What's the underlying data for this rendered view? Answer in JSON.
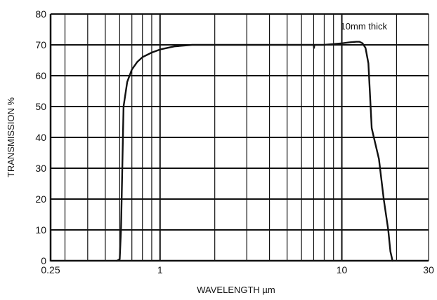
{
  "chart_data": {
    "type": "line",
    "title": "",
    "xlabel": "WAVELENGTH µm",
    "ylabel": "TRANSMISSION %",
    "x_scale": "log",
    "xlim": [
      0.25,
      30
    ],
    "ylim": [
      0,
      80
    ],
    "x_tick_labels": [
      {
        "value": 0.25,
        "label": "0.25"
      },
      {
        "value": 1,
        "label": "1"
      },
      {
        "value": 10,
        "label": "10"
      },
      {
        "value": 30,
        "label": "30"
      }
    ],
    "y_ticks": [
      0,
      10,
      20,
      30,
      40,
      50,
      60,
      70,
      80
    ],
    "x_gridlines": [
      0.3,
      0.4,
      0.5,
      0.6,
      0.7,
      0.8,
      0.9,
      1,
      2,
      3,
      4,
      5,
      6,
      7,
      8,
      9,
      10,
      20,
      30
    ],
    "y_gridlines": [
      10,
      20,
      30,
      40,
      50,
      60,
      70,
      80
    ],
    "grid": true,
    "annotation": "10mm thick",
    "series": [
      {
        "x": [
          0.58,
          0.6,
          0.61,
          0.62,
          0.63,
          0.66,
          0.7,
          0.75,
          0.8,
          0.9,
          1.0,
          1.2,
          1.5,
          2,
          3,
          5,
          7,
          7.03,
          7.06,
          8,
          10,
          11,
          12,
          12.5,
          13,
          13.5,
          14,
          14.6,
          15,
          16,
          17,
          18,
          18.5,
          19
        ],
        "y": [
          0,
          0.5,
          10,
          30,
          50,
          58,
          62,
          64.5,
          66,
          67.5,
          68.5,
          69.5,
          70,
          70,
          70,
          70,
          70,
          69,
          70,
          70,
          70.5,
          70.8,
          71,
          71,
          70.5,
          69,
          64,
          43,
          40,
          33,
          20,
          10,
          3,
          0
        ]
      }
    ]
  }
}
